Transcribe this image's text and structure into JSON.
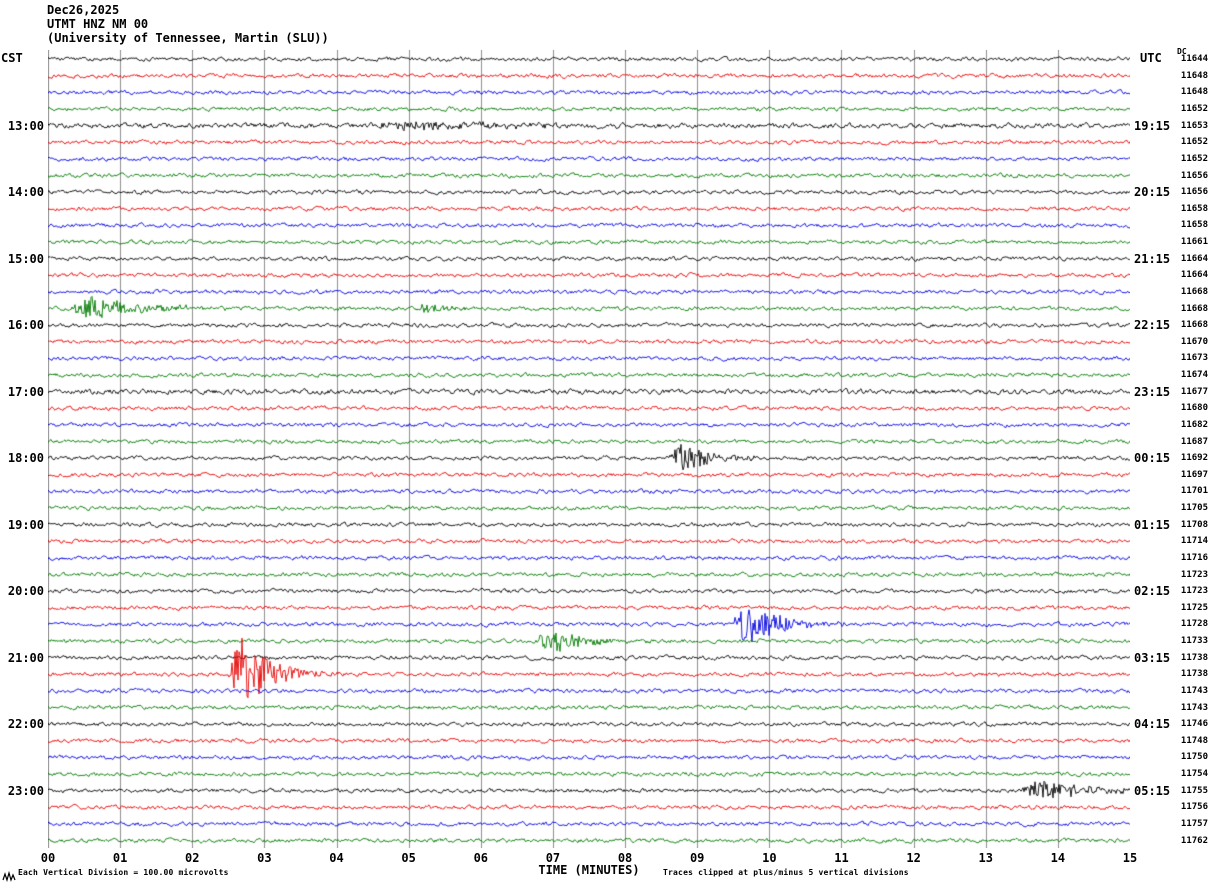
{
  "header": {
    "date": "Dec26,2025",
    "station": "UTMT HNZ NM 00",
    "institution": "(University of Tennessee, Martin (SLU))"
  },
  "axes": {
    "left_label": "CST",
    "right_label": "UTC",
    "right_col_header": "DC",
    "x_title": "TIME (MINUTES)",
    "x_ticks": [
      "00",
      "01",
      "02",
      "03",
      "04",
      "05",
      "06",
      "07",
      "08",
      "09",
      "10",
      "11",
      "12",
      "13",
      "14",
      "15"
    ],
    "footer_left": "Each Vertical Division =  100.00 microvolts",
    "footer_right": "Traces clipped at plus/minus 5 vertical divisions"
  },
  "colors": {
    "black": "#000000",
    "red": "#e60000",
    "blue": "#0000e0",
    "green": "#007a00",
    "grid": "#8f8f8f"
  },
  "chart_data": {
    "type": "line",
    "title": "UTMT HNZ NM 00",
    "xlabel": "TIME (MINUTES)",
    "x_range_minutes": [
      0,
      15
    ],
    "minutes_per_row": 15,
    "division_microvolts": 100.0,
    "clip_divisions": 5,
    "row_color_cycle": [
      "black",
      "red",
      "blue",
      "green"
    ],
    "rows": [
      {
        "color": "black",
        "dc": 11644
      },
      {
        "color": "red",
        "dc": 11648
      },
      {
        "color": "blue",
        "dc": 11648
      },
      {
        "color": "green",
        "dc": 11652
      },
      {
        "color": "black",
        "dc": 11653,
        "left": "13:00",
        "right": "19:15",
        "noise": 1.3,
        "events": [
          {
            "start": 4.5,
            "dur": 1.8,
            "amp": 4
          }
        ]
      },
      {
        "color": "red",
        "dc": 11652
      },
      {
        "color": "blue",
        "dc": 11652
      },
      {
        "color": "green",
        "dc": 11656
      },
      {
        "color": "black",
        "dc": 11656,
        "left": "14:00",
        "right": "20:15"
      },
      {
        "color": "red",
        "dc": 11658
      },
      {
        "color": "blue",
        "dc": 11658
      },
      {
        "color": "green",
        "dc": 11661
      },
      {
        "color": "black",
        "dc": 11664,
        "left": "15:00",
        "right": "21:15"
      },
      {
        "color": "red",
        "dc": 11664
      },
      {
        "color": "blue",
        "dc": 11668
      },
      {
        "color": "green",
        "dc": 11668,
        "events": [
          {
            "start": 0.35,
            "dur": 0.8,
            "amp": 11
          },
          {
            "start": 5.15,
            "dur": 0.35,
            "amp": 6
          }
        ]
      },
      {
        "color": "black",
        "dc": 11668,
        "left": "16:00",
        "right": "22:15"
      },
      {
        "color": "red",
        "dc": 11670
      },
      {
        "color": "blue",
        "dc": 11673
      },
      {
        "color": "green",
        "dc": 11674
      },
      {
        "color": "black",
        "dc": 11677,
        "left": "17:00",
        "right": "23:15",
        "noise": 1.3
      },
      {
        "color": "red",
        "dc": 11680
      },
      {
        "color": "blue",
        "dc": 11682
      },
      {
        "color": "green",
        "dc": 11687
      },
      {
        "color": "black",
        "dc": 11692,
        "left": "18:00",
        "right": "00:15",
        "events": [
          {
            "start": 8.65,
            "dur": 0.5,
            "amp": 14
          }
        ]
      },
      {
        "color": "red",
        "dc": 11697
      },
      {
        "color": "blue",
        "dc": 11701
      },
      {
        "color": "green",
        "dc": 11705
      },
      {
        "color": "black",
        "dc": 11708,
        "left": "19:00",
        "right": "01:15"
      },
      {
        "color": "red",
        "dc": 11714
      },
      {
        "color": "blue",
        "dc": 11716
      },
      {
        "color": "green",
        "dc": 11723
      },
      {
        "color": "black",
        "dc": 11723,
        "left": "20:00",
        "right": "02:15"
      },
      {
        "color": "red",
        "dc": 11725
      },
      {
        "color": "blue",
        "dc": 11728,
        "events": [
          {
            "start": 9.55,
            "dur": 0.5,
            "amp": 24
          }
        ]
      },
      {
        "color": "green",
        "dc": 11733,
        "events": [
          {
            "start": 6.8,
            "dur": 0.6,
            "amp": 12
          }
        ]
      },
      {
        "color": "black",
        "dc": 11738,
        "left": "21:00",
        "right": "03:15"
      },
      {
        "color": "red",
        "dc": 11738,
        "events": [
          {
            "start": 2.55,
            "dur": 0.45,
            "amp": 42
          }
        ]
      },
      {
        "color": "blue",
        "dc": 11743
      },
      {
        "color": "green",
        "dc": 11743
      },
      {
        "color": "black",
        "dc": 11746,
        "left": "22:00",
        "right": "04:15"
      },
      {
        "color": "red",
        "dc": 11748
      },
      {
        "color": "blue",
        "dc": 11750
      },
      {
        "color": "green",
        "dc": 11754
      },
      {
        "color": "black",
        "dc": 11755,
        "left": "23:00",
        "right": "05:15",
        "events": [
          {
            "start": 13.5,
            "dur": 0.8,
            "amp": 11
          }
        ]
      },
      {
        "color": "red",
        "dc": 11756
      },
      {
        "color": "blue",
        "dc": 11757
      },
      {
        "color": "green",
        "dc": 11762
      }
    ]
  }
}
